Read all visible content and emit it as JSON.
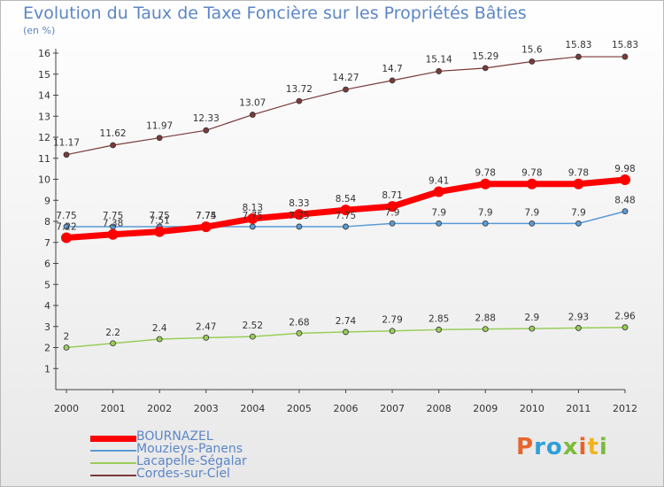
{
  "title": "Evolution du Taux de Taxe Foncière sur les Propriétés Bâties",
  "unit": "(en %)",
  "logo": {
    "text": "Proxiti",
    "colors": [
      "#e8642b",
      "#2f9fd8",
      "#2f9fd8",
      "#7cbb3a",
      "#e8642b",
      "#f0b41e",
      "#7cbb3a"
    ]
  },
  "chart_data": {
    "type": "line",
    "title": "Evolution du Taux de Taxe Foncière sur les Propriétés Bâties",
    "ylabel": "(en %)",
    "xlabel": "",
    "ylim": [
      1,
      16
    ],
    "yticks": [
      1,
      2,
      3,
      4,
      5,
      6,
      7,
      8,
      9,
      10,
      11,
      12,
      13,
      14,
      15,
      16
    ],
    "grid": false,
    "legend_position": "bottom-left",
    "categories": [
      "2000",
      "2001",
      "2002",
      "2003",
      "2004",
      "2005",
      "2006",
      "2007",
      "2008",
      "2009",
      "2010",
      "2011",
      "2012"
    ],
    "series": [
      {
        "name": "BOURNAZEL",
        "color": "#ff0000",
        "labels": [
          "7.22",
          "7.38",
          "7.51",
          "7.74",
          "8.13",
          "8.33",
          "8.54",
          "8.71",
          "9.41",
          "9.78",
          "9.78",
          "9.78",
          "9.98"
        ],
        "values": [
          7.22,
          7.38,
          7.51,
          7.74,
          8.13,
          8.33,
          8.54,
          8.71,
          9.41,
          9.78,
          9.78,
          9.78,
          9.98
        ]
      },
      {
        "name": "Mouzieys-Panens",
        "color": "#5b9bd5",
        "labels": [
          "7.75",
          "7.75",
          "7.75",
          "7.75",
          "7.75",
          "7.75",
          "7.75",
          "7.9",
          "7.9",
          "7.9",
          "7.9",
          "7.9",
          "8.48"
        ],
        "values": [
          7.75,
          7.75,
          7.75,
          7.75,
          7.75,
          7.75,
          7.75,
          7.9,
          7.9,
          7.9,
          7.9,
          7.9,
          8.48
        ]
      },
      {
        "name": "Lacapelle-Ségalar",
        "color": "#9acd5a",
        "labels": [
          "2",
          "2.2",
          "2.4",
          "2.47",
          "2.52",
          "2.68",
          "2.74",
          "2.79",
          "2.85",
          "2.88",
          "2.9",
          "2.93",
          "2.96"
        ],
        "values": [
          2,
          2.2,
          2.4,
          2.47,
          2.52,
          2.68,
          2.74,
          2.79,
          2.85,
          2.88,
          2.9,
          2.93,
          2.96
        ]
      },
      {
        "name": "Cordes-sur-Ciel",
        "color": "#7b3a3a",
        "labels": [
          "11.17",
          "11.62",
          "11.97",
          "12.33",
          "13.07",
          "13.72",
          "14.27",
          "14.7",
          "15.14",
          "15.29",
          "15.6",
          "15.83",
          "15.83"
        ],
        "values": [
          11.17,
          11.62,
          11.97,
          12.33,
          13.07,
          13.72,
          14.27,
          14.7,
          15.14,
          15.29,
          15.6,
          15.83,
          15.83
        ]
      }
    ]
  }
}
